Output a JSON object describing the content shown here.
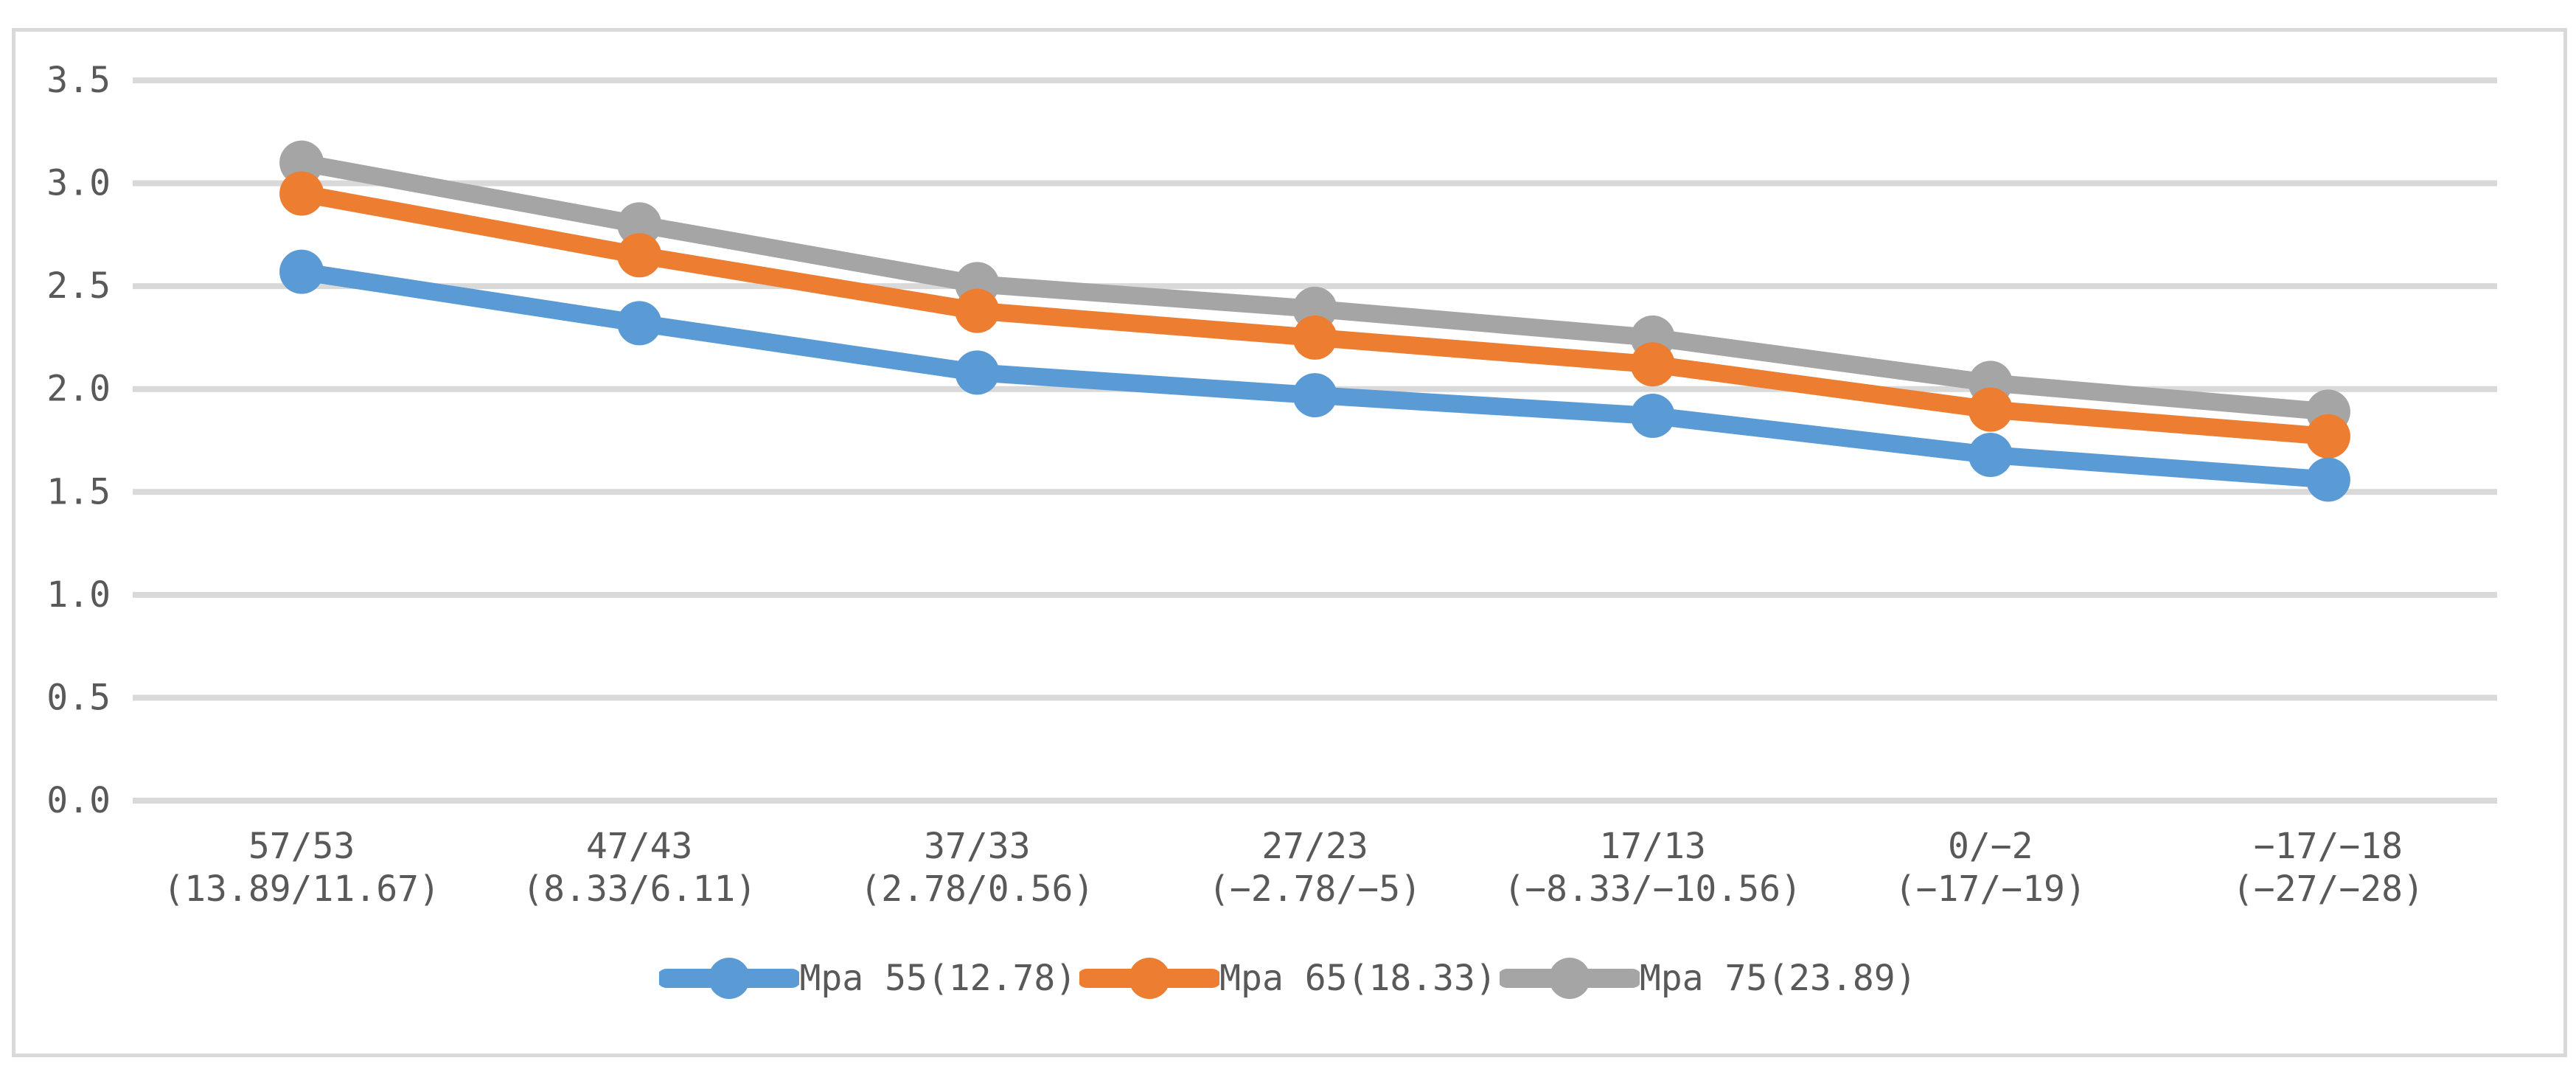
{
  "chart_data": {
    "type": "line",
    "title": "",
    "xlabel": "",
    "ylabel": "",
    "categories": [
      {
        "line1": "57/53",
        "line2": "(13.89/11.67)"
      },
      {
        "line1": "47/43",
        "line2": "(8.33/6.11)"
      },
      {
        "line1": "37/33",
        "line2": "(2.78/0.56)"
      },
      {
        "line1": "27/23",
        "line2": "(−2.78/−5)"
      },
      {
        "line1": "17/13",
        "line2": "(−8.33/−10.56)"
      },
      {
        "line1": "0/−2",
        "line2": "(−17/−19)"
      },
      {
        "line1": "−17/−18",
        "line2": "(−27/−28)"
      }
    ],
    "series": [
      {
        "name": "Mpa 55(12.78)",
        "color": "#5B9BD5",
        "values": [
          2.57,
          2.32,
          2.08,
          1.97,
          1.87,
          1.68,
          1.56
        ]
      },
      {
        "name": "Mpa 65(18.33)",
        "color": "#ED7D31",
        "values": [
          2.95,
          2.65,
          2.38,
          2.25,
          2.12,
          1.9,
          1.77
        ]
      },
      {
        "name": "Mpa 75(23.89)",
        "color": "#A5A5A5",
        "values": [
          3.1,
          2.8,
          2.51,
          2.39,
          2.25,
          2.03,
          1.89
        ]
      }
    ],
    "y_axis": {
      "ticks": [
        "0.0",
        "0.5",
        "1.0",
        "1.5",
        "2.0",
        "2.5",
        "3.0",
        "3.5"
      ],
      "min": 0.0,
      "max": 3.5
    },
    "grid": true,
    "legend_position": "bottom",
    "colors": {
      "gridline": "#D9D9D9",
      "frame_border": "#D9D9D9",
      "text": "#595959",
      "background": "#FFFFFF"
    }
  }
}
